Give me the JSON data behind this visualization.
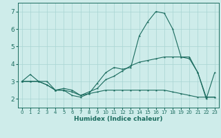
{
  "xlabel": "Humidex (Indice chaleur)",
  "ylabel": "",
  "xlim": [
    -0.5,
    23.5
  ],
  "ylim": [
    1.5,
    7.5
  ],
  "yticks": [
    2,
    3,
    4,
    5,
    6,
    7
  ],
  "xticks": [
    0,
    1,
    2,
    3,
    4,
    5,
    6,
    7,
    8,
    9,
    10,
    11,
    12,
    13,
    14,
    15,
    16,
    17,
    18,
    19,
    20,
    21,
    22,
    23
  ],
  "bg_color": "#ceecea",
  "line_color": "#1a6b5e",
  "grid_color": "#a8d5d2",
  "curve1_x": [
    0,
    1,
    2,
    3,
    4,
    5,
    6,
    7,
    8,
    9,
    10,
    11,
    12,
    13,
    14,
    15,
    16,
    17,
    18,
    19,
    20,
    21,
    22,
    23
  ],
  "curve1_y": [
    3.0,
    3.4,
    3.0,
    3.0,
    2.5,
    2.5,
    2.2,
    2.1,
    2.3,
    2.9,
    3.5,
    3.8,
    3.7,
    3.8,
    5.6,
    6.4,
    7.0,
    6.9,
    6.0,
    4.4,
    4.4,
    3.5,
    2.0,
    3.5
  ],
  "curve2_x": [
    0,
    1,
    2,
    3,
    4,
    5,
    6,
    7,
    8,
    9,
    10,
    11,
    12,
    13,
    14,
    15,
    16,
    17,
    18,
    19,
    20,
    21,
    22,
    23
  ],
  "curve2_y": [
    3.0,
    3.0,
    3.0,
    2.8,
    2.5,
    2.6,
    2.5,
    2.2,
    2.4,
    2.6,
    3.1,
    3.3,
    3.6,
    3.9,
    4.1,
    4.2,
    4.3,
    4.4,
    4.4,
    4.4,
    4.3,
    3.5,
    2.1,
    2.1
  ],
  "curve3_x": [
    0,
    1,
    2,
    3,
    4,
    5,
    6,
    7,
    8,
    9,
    10,
    11,
    12,
    13,
    14,
    15,
    16,
    17,
    18,
    19,
    20,
    21,
    22,
    23
  ],
  "curve3_y": [
    3.0,
    3.0,
    3.0,
    2.8,
    2.5,
    2.5,
    2.4,
    2.2,
    2.3,
    2.4,
    2.5,
    2.5,
    2.5,
    2.5,
    2.5,
    2.5,
    2.5,
    2.5,
    2.4,
    2.3,
    2.2,
    2.1,
    2.1,
    2.1
  ]
}
